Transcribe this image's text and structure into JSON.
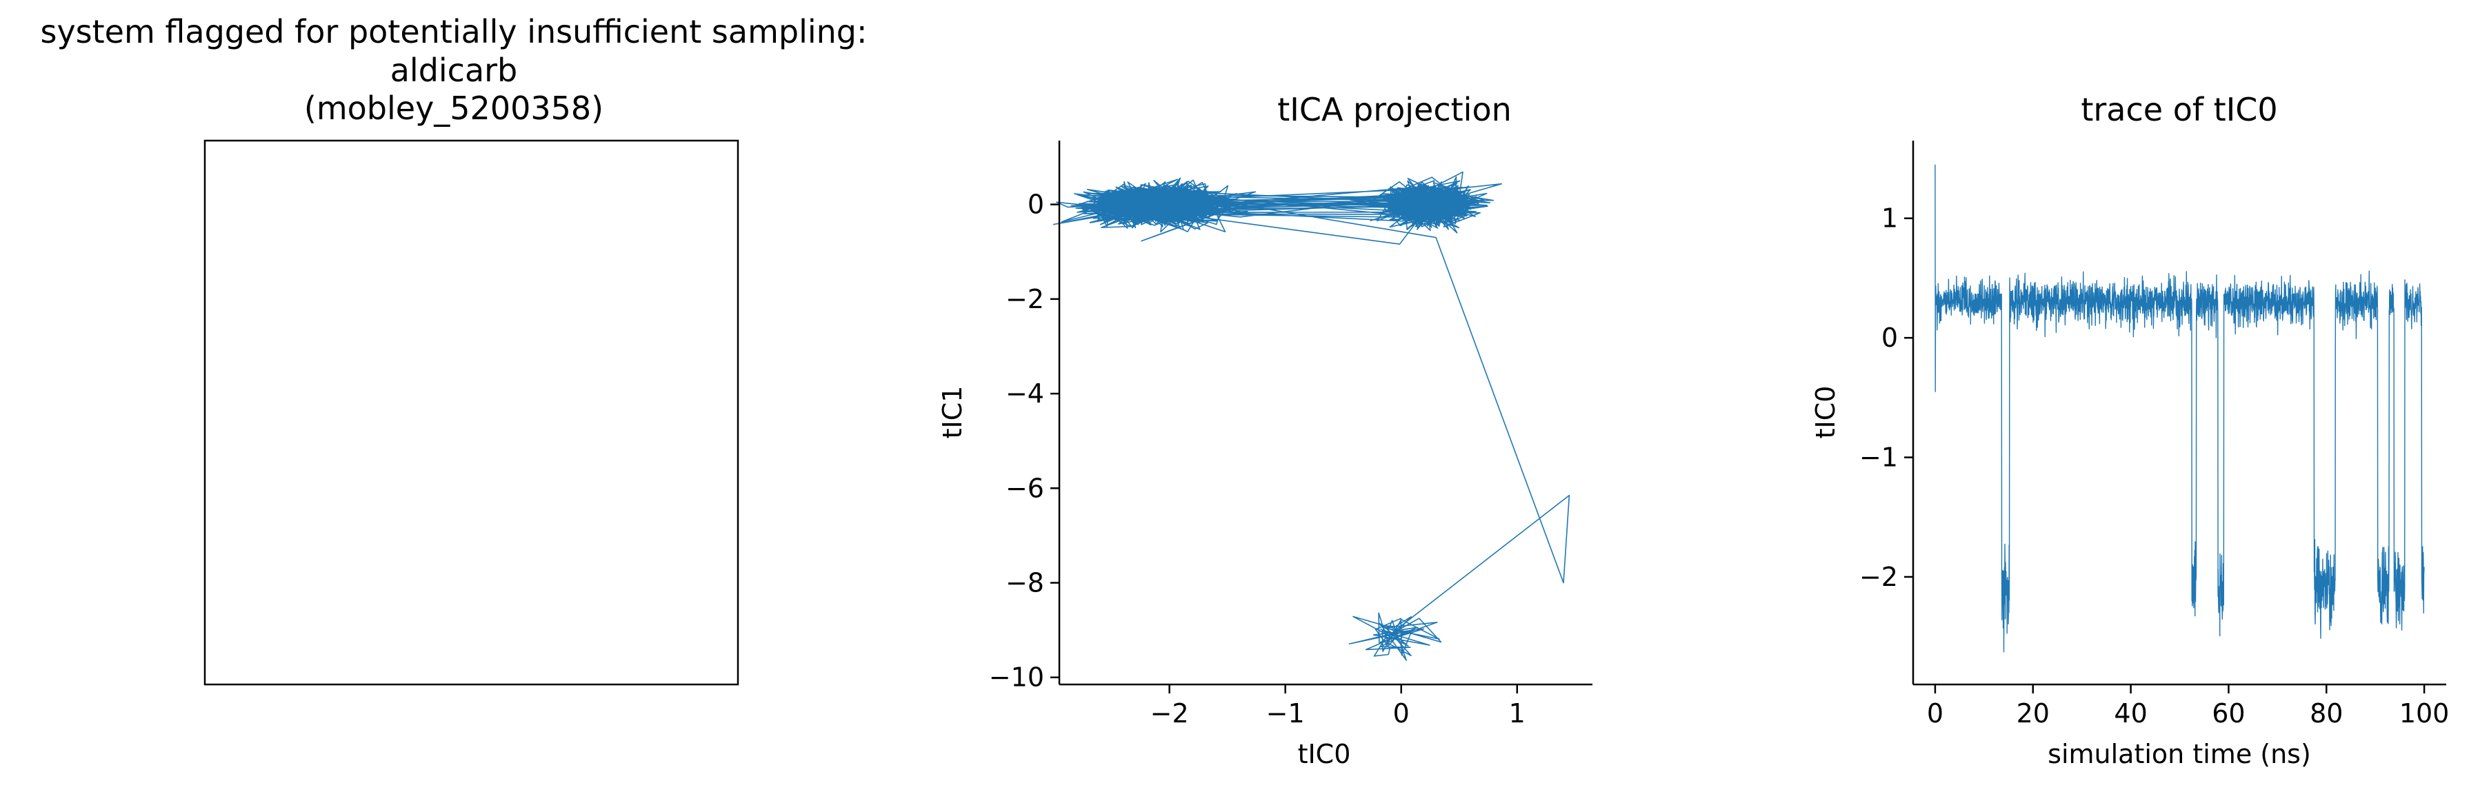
{
  "panel1": {
    "title_lines": [
      "system flagged for potentially insufficient sampling:",
      "aldicarb",
      "(mobley_5200358)"
    ]
  },
  "chart_data": [
    {
      "type": "line",
      "title": "tICA projection",
      "xlabel": "tIC0",
      "ylabel": "tIC1",
      "xlim": [
        -2.95,
        1.65
      ],
      "ylim": [
        -10.15,
        1.35
      ],
      "xticks": [
        -2,
        -1,
        0,
        1
      ],
      "xtick_labels": [
        "−2",
        "−1",
        "0",
        "1"
      ],
      "yticks": [
        0,
        -2,
        -4,
        -6,
        -8,
        -10
      ],
      "ytick_labels": [
        "0",
        "−2",
        "−4",
        "−6",
        "−8",
        "−10"
      ],
      "grid": false,
      "color": "#1f77b4",
      "clusters": [
        {
          "name_hint": "upper-left",
          "center": [
            -2.1,
            0.0
          ],
          "spread": [
            0.28,
            0.2
          ]
        },
        {
          "name_hint": "upper-right",
          "center": [
            0.25,
            0.0
          ],
          "spread": [
            0.17,
            0.2
          ]
        },
        {
          "name_hint": "lower",
          "center": [
            -0.05,
            -9.1
          ],
          "spread": [
            0.18,
            0.22
          ]
        }
      ],
      "excursion_path": [
        [
          0.3,
          -0.7
        ],
        [
          1.4,
          -8.0
        ],
        [
          1.45,
          -6.15
        ],
        [
          -0.1,
          -9.1
        ]
      ]
    },
    {
      "type": "line",
      "title": "trace of tIC0",
      "xlabel": "simulation time (ns)",
      "ylabel": "tIC0",
      "xlim": [
        -4.5,
        104.5
      ],
      "ylim": [
        -2.9,
        1.65
      ],
      "xticks": [
        0,
        20,
        40,
        60,
        80,
        100
      ],
      "xtick_labels": [
        "0",
        "20",
        "40",
        "60",
        "80",
        "100"
      ],
      "yticks": [
        1,
        0,
        -1,
        -2
      ],
      "ytick_labels": [
        "1",
        "0",
        "−1",
        "−2"
      ],
      "grid": false,
      "color": "#1f77b4",
      "high_state_level": 0.3,
      "low_state_level": -2.1,
      "low_state_intervals": [
        [
          13.6,
          15.2
        ],
        [
          52.5,
          53.4
        ],
        [
          57.8,
          59.0
        ],
        [
          77.5,
          81.8
        ],
        [
          90.5,
          92.8
        ],
        [
          93.8,
          96.0
        ],
        [
          99.5,
          100.0
        ]
      ],
      "initial_spike": [
        0.0,
        1.45
      ]
    }
  ]
}
